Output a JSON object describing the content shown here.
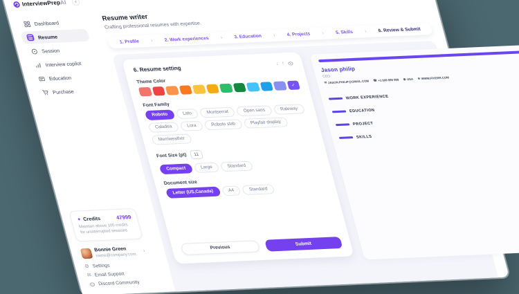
{
  "colors": {
    "backdrop": "#4b6770",
    "accent": "#7440f0",
    "step_link": "#7b54ee",
    "step_active": "#33306b",
    "preview_rule": "#5a46e8"
  },
  "icons": {
    "chevron_left": "‹",
    "chevron_right": "›",
    "check": "✓",
    "sparkle": "✦",
    "arrow_down": "↓",
    "arrow_up": "↑",
    "gear": "⚙",
    "envelope": "✉",
    "email": "✉",
    "phone": "☎",
    "location": "◉",
    "website": "⊕"
  },
  "sidebar": {
    "brand": "InterviewPrep",
    "brand_suffix": "AI",
    "items": [
      "Dashboard",
      "Resume",
      "Session",
      "Interview copilot",
      "Education",
      "Purchase"
    ],
    "active_item": "Resume",
    "credits": {
      "label": "Credits",
      "value": "47999",
      "note": "Maintain above 100 credits for uninterrupted sessions"
    },
    "user": {
      "name": "Bonnie Green",
      "email": "name@company.com"
    },
    "footer_items": [
      "Settings",
      "Email Support",
      "Discord Community"
    ]
  },
  "header": {
    "title": "Resume writer",
    "subtitle": "Crafting professional resumes with expertise."
  },
  "steps": {
    "items": [
      "1. Profile",
      "2. Work experiences",
      "3. Education",
      "4. Projects",
      "5. Skills",
      "6. Review & Submit"
    ],
    "active": "6. Review & Submit"
  },
  "settings": {
    "title": "6. Resume setting",
    "theme_color": {
      "label": "Theme Color",
      "colors": [
        "#f4736b",
        "#ee4444",
        "#f9944b",
        "#f97a1f",
        "#fcc43d",
        "#f5a913",
        "#2ebd6b",
        "#148741",
        "#47c2f8",
        "#1da0ea",
        "#8890f4",
        "#7654f3"
      ],
      "selected_index": 11
    },
    "font_family": {
      "label": "Font Family",
      "options": [
        "Roboto",
        "Lato",
        "Montserrat",
        "Open sans",
        "Raleway",
        "Caladea",
        "Lora",
        "Roboto slab",
        "Playfair display",
        "Merriweather"
      ],
      "selected": "Roboto"
    },
    "font_size": {
      "label": "Font Size (pt)",
      "value": "11"
    },
    "density": {
      "options": [
        "Compact",
        "Large",
        "Standard"
      ],
      "selected": "Compact"
    },
    "document_size": {
      "label": "Document size",
      "options": [
        "Letter (US,Canada)",
        "A4",
        "Standard"
      ],
      "selected": "Letter (US,Canada)"
    },
    "previous_label": "Previous",
    "submit_label": "Submit"
  },
  "preview": {
    "name": "Jason philip",
    "role": "CEO",
    "contacts": [
      {
        "icon": "email",
        "text": "JASON.PHILIP@GMAIL.COM"
      },
      {
        "icon": "phone",
        "text": "+1 999 999 999"
      },
      {
        "icon": "location",
        "text": "USA"
      },
      {
        "icon": "website",
        "text": "WWW.FIVERR.COM"
      }
    ],
    "sections": [
      "WORK EXPERIENCE",
      "EDUCATION",
      "PROJECT",
      "SKILLS"
    ]
  }
}
